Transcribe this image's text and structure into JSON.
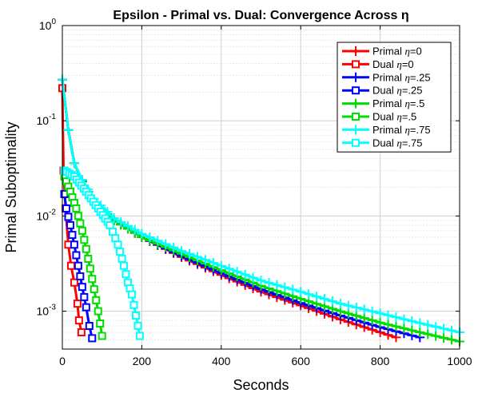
{
  "chart_data": {
    "type": "line",
    "title": "Epsilon - Primal vs. Dual: Convergence Across η",
    "xlabel": "Seconds",
    "ylabel": "Primal Suboptimality",
    "x_scale": "linear",
    "y_scale": "log",
    "xlim": [
      0,
      1000
    ],
    "ylim": [
      0.0004,
      1
    ],
    "x_ticks": [
      0,
      200,
      400,
      600,
      800,
      1000
    ],
    "x_tick_labels": [
      "0",
      "200",
      "400",
      "600",
      "800",
      "1000"
    ],
    "y_ticks": [
      0.001,
      0.01,
      0.1,
      1
    ],
    "y_tick_base": "10",
    "y_tick_exponents": [
      "-3",
      "-2",
      "-1",
      "0"
    ],
    "grid": true,
    "legend_position": "top-right",
    "series": [
      {
        "name": "Primal η=0",
        "legend_base": "Primal ",
        "legend_eta": "=0",
        "color": "#ff0000",
        "marker": "plus",
        "x": [
          0,
          15,
          30,
          50,
          80,
          130,
          200,
          300,
          400,
          500,
          600,
          700,
          800,
          840
        ],
        "y": [
          0.27,
          0.08,
          0.036,
          0.023,
          0.014,
          0.009,
          0.006,
          0.0037,
          0.0024,
          0.0016,
          0.00115,
          0.00082,
          0.0006,
          0.00053
        ]
      },
      {
        "name": "Dual η=0",
        "legend_base": "Dual ",
        "legend_eta": "=0",
        "color": "#ff0000",
        "marker": "square",
        "x": [
          0,
          3,
          8,
          15,
          22,
          30,
          38,
          42,
          48
        ],
        "y": [
          0.22,
          0.03,
          0.012,
          0.005,
          0.003,
          0.002,
          0.0012,
          0.0008,
          0.0006
        ]
      },
      {
        "name": "Primal η=.25",
        "legend_base": "Primal ",
        "legend_eta": "=.25",
        "color": "#0000ff",
        "marker": "plus",
        "x": [
          0,
          15,
          30,
          50,
          80,
          130,
          200,
          300,
          400,
          500,
          600,
          700,
          800,
          900
        ],
        "y": [
          0.27,
          0.08,
          0.036,
          0.023,
          0.014,
          0.009,
          0.006,
          0.0038,
          0.0025,
          0.0017,
          0.00122,
          0.0009,
          0.00068,
          0.00053
        ]
      },
      {
        "name": "Dual η=.25",
        "legend_base": "Dual ",
        "legend_eta": "=.25",
        "color": "#0000ff",
        "marker": "square",
        "x": [
          5,
          10,
          20,
          30,
          40,
          50,
          60,
          68,
          75
        ],
        "y": [
          0.017,
          0.012,
          0.008,
          0.005,
          0.003,
          0.0018,
          0.0011,
          0.0007,
          0.00052
        ]
      },
      {
        "name": "Primal η=.5",
        "legend_base": "Primal ",
        "legend_eta": "=.5",
        "color": "#00dd00",
        "marker": "plus",
        "x": [
          0,
          15,
          30,
          50,
          80,
          130,
          200,
          300,
          400,
          500,
          600,
          700,
          800,
          900,
          1000
        ],
        "y": [
          0.27,
          0.08,
          0.036,
          0.023,
          0.014,
          0.009,
          0.006,
          0.004,
          0.0027,
          0.00185,
          0.00135,
          0.001,
          0.00076,
          0.0006,
          0.00048
        ]
      },
      {
        "name": "Dual η=.5",
        "legend_base": "Dual ",
        "legend_eta": "=.5",
        "color": "#00dd00",
        "marker": "square",
        "x": [
          5,
          20,
          35,
          50,
          60,
          70,
          80,
          90,
          100
        ],
        "y": [
          0.026,
          0.018,
          0.012,
          0.007,
          0.0045,
          0.0028,
          0.0017,
          0.001,
          0.00055
        ]
      },
      {
        "name": "Primal η=.75",
        "legend_base": "Primal ",
        "legend_eta": "=.75",
        "color": "#00ffff",
        "marker": "plus",
        "x": [
          0,
          15,
          30,
          50,
          80,
          130,
          200,
          300,
          400,
          500,
          600,
          700,
          800,
          900,
          1000
        ],
        "y": [
          0.27,
          0.08,
          0.036,
          0.024,
          0.015,
          0.0095,
          0.0065,
          0.0043,
          0.003,
          0.0021,
          0.0016,
          0.0012,
          0.00095,
          0.00075,
          0.0006
        ]
      },
      {
        "name": "Dual η=.75",
        "legend_base": "Dual ",
        "legend_eta": "=.75",
        "color": "#00ffff",
        "marker": "square",
        "x": [
          5,
          30,
          60,
          90,
          120,
          140,
          155,
          165,
          175,
          185,
          195
        ],
        "y": [
          0.03,
          0.026,
          0.018,
          0.012,
          0.008,
          0.005,
          0.003,
          0.002,
          0.0015,
          0.0009,
          0.00055
        ]
      }
    ]
  }
}
